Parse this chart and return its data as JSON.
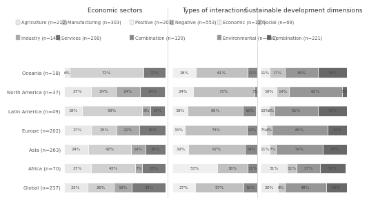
{
  "title_economic": "Economic sectors",
  "title_interactions": "Types of interactions",
  "title_sustainable": "Sustainable development dimensions",
  "regions": [
    "Global (n=237)",
    "Africa (n=70)",
    "Asia (n=263)",
    "Europe (n=202)",
    "Latin America (n=49)",
    "North America (n=37)",
    "Oceania (n=18)"
  ],
  "economic_legend": [
    "Agriculture (n=212)",
    "Manufacturing (n=303)",
    "Industry (n=143)",
    "Services (n=208)"
  ],
  "economic_colors": [
    "#e8e8e8",
    "#d0d0d0",
    "#a8a8a8",
    "#787878"
  ],
  "economic_data": [
    [
      23,
      26,
      18,
      33
    ],
    [
      27,
      43,
      7,
      23
    ],
    [
      24,
      42,
      14,
      20
    ],
    [
      27,
      25,
      22,
      26
    ],
    [
      18,
      59,
      8,
      14
    ],
    [
      27,
      24,
      24,
      24
    ],
    [
      6,
      72,
      0,
      22
    ]
  ],
  "economic_labels": [
    [
      "23%",
      "26%",
      "18%",
      "33%"
    ],
    [
      "27%",
      "43%",
      "7%",
      "23%"
    ],
    [
      "24%",
      "42%",
      "14%",
      "20%"
    ],
    [
      "27%",
      "25%",
      "22%",
      "26%"
    ],
    [
      "18%",
      "59%",
      "8%",
      "14%"
    ],
    [
      "27%",
      "24%",
      "24%",
      "24%"
    ],
    [
      "6%",
      "72%",
      "",
      "22%"
    ]
  ],
  "interactions_legend": [
    "Positive (n=203)",
    "Negative (n=553)",
    "Combination (n=120)"
  ],
  "interactions_colors": [
    "#efefef",
    "#c0c0c0",
    "#888888"
  ],
  "interactions_data": [
    [
      27,
      57,
      16
    ],
    [
      53,
      36,
      11
    ],
    [
      19,
      67,
      14
    ],
    [
      15,
      73,
      12
    ],
    [
      18,
      65,
      16
    ],
    [
      24,
      73,
      3
    ],
    [
      28,
      61,
      11
    ]
  ],
  "interactions_labels": [
    [
      "27%",
      "57%",
      "16%"
    ],
    [
      "53%",
      "36%",
      "11%"
    ],
    [
      "19%",
      "67%",
      "14%"
    ],
    [
      "15%",
      "73%",
      "12%"
    ],
    [
      "18%",
      "65%",
      "16%"
    ],
    [
      "24%",
      "73%",
      "3%"
    ],
    [
      "28%",
      "61%",
      "11%"
    ]
  ],
  "sustainable_legend": [
    "Economic (n=127)",
    "Social (n=69)",
    "Environmental (n=459)",
    "Combination (n=221)"
  ],
  "sustainable_colors": [
    "#ececec",
    "#c4c4c4",
    "#969696",
    "#686868"
  ],
  "sustainable_data": [
    [
      20,
      8,
      48,
      24
    ],
    [
      31,
      11,
      27,
      30
    ],
    [
      11,
      7,
      54,
      28
    ],
    [
      7,
      6,
      65,
      22
    ],
    [
      10,
      6,
      51,
      33
    ],
    [
      19,
      14,
      62,
      5
    ],
    [
      11,
      17,
      39,
      33
    ]
  ],
  "sustainable_labels": [
    [
      "20%",
      "8%",
      "48%",
      "24%"
    ],
    [
      "31%",
      "11%",
      "27%",
      "30%"
    ],
    [
      "11%",
      "7%",
      "54%",
      "28%"
    ],
    [
      "7%",
      "6%",
      "65%",
      "22%"
    ],
    [
      "10%",
      "6%",
      "51%",
      "33%"
    ],
    [
      "19%",
      "14%",
      "62%",
      "5%"
    ],
    [
      "11%",
      "17%",
      "39%",
      "33%"
    ]
  ],
  "bar_height": 0.52,
  "fontsize_title": 6.5,
  "fontsize_legend": 4.8,
  "fontsize_ytick": 5.0,
  "fontsize_bar": 4.3
}
